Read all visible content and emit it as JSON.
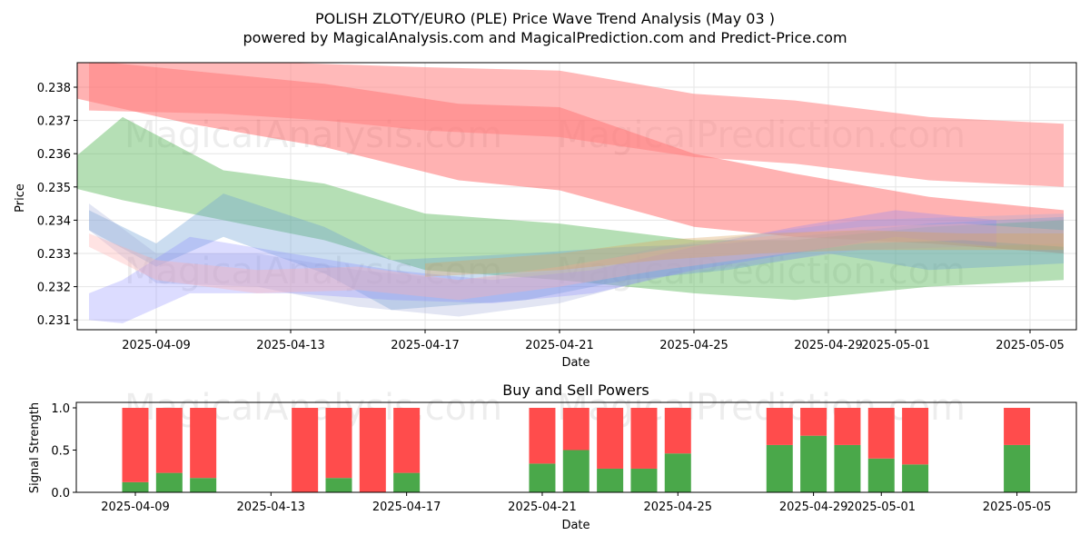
{
  "title": "POLISH ZLOTY/EURO (PLE) Price Wave Trend Analysis (May 03 )",
  "subtitle": "powered by MagicalAnalysis.com and MagicalPrediction.com and Predict-Price.com",
  "watermarks": [
    "MagicalAnalysis.com",
    "MagicalPrediction.com"
  ],
  "chart_data": [
    {
      "type": "area",
      "xlabel": "Date",
      "ylabel": "Price",
      "ylim": [
        0.2307,
        0.2387
      ],
      "xlim": [
        "2025-04-06",
        "2025-05-06"
      ],
      "grid": true,
      "yticks": [
        "0.231",
        "0.232",
        "0.233",
        "0.234",
        "0.235",
        "0.236",
        "0.237",
        "0.238"
      ],
      "xticks": [
        "2025-04-09",
        "2025-04-13",
        "2025-04-17",
        "2025-04-21",
        "2025-04-25",
        "2025-04-29",
        "2025-05-01",
        "2025-05-05"
      ],
      "bands": [
        {
          "color": "#ff5555",
          "opacity": 0.45,
          "x": [
            "2025-04-06",
            "2025-04-10",
            "2025-04-14",
            "2025-04-18",
            "2025-04-21",
            "2025-04-25",
            "2025-04-28",
            "2025-05-02",
            "2025-05-06"
          ],
          "upper": [
            0.2389,
            0.2385,
            0.2381,
            0.2375,
            0.2374,
            0.236,
            0.2354,
            0.2347,
            0.2343
          ],
          "lower": [
            0.2378,
            0.2369,
            0.2362,
            0.2352,
            0.2349,
            0.2338,
            0.2335,
            0.2333,
            0.233
          ]
        },
        {
          "color": "#ff8080",
          "opacity": 0.55,
          "x": [
            "2025-04-07",
            "2025-04-11",
            "2025-04-14",
            "2025-04-17",
            "2025-04-21",
            "2025-04-25",
            "2025-04-28",
            "2025-05-02",
            "2025-05-06"
          ],
          "upper": [
            0.2389,
            0.2388,
            0.2387,
            0.2386,
            0.2385,
            0.2378,
            0.2376,
            0.2371,
            0.2369
          ],
          "lower": [
            0.2373,
            0.2372,
            0.237,
            0.2367,
            0.2365,
            0.2359,
            0.2357,
            0.2352,
            0.235
          ]
        },
        {
          "color": "#5cb85c",
          "opacity": 0.45,
          "x": [
            "2025-04-06",
            "2025-04-08",
            "2025-04-11",
            "2025-04-14",
            "2025-04-17",
            "2025-04-21",
            "2025-04-25",
            "2025-04-28",
            "2025-05-02",
            "2025-05-06"
          ],
          "upper": [
            0.2354,
            0.2371,
            0.2355,
            0.2351,
            0.2342,
            0.2339,
            0.2334,
            0.2334,
            0.2338,
            0.234
          ],
          "lower": [
            0.2351,
            0.2346,
            0.234,
            0.2334,
            0.2325,
            0.2322,
            0.2318,
            0.2316,
            0.232,
            0.2322
          ]
        },
        {
          "color": "#6a9fd4",
          "opacity": 0.35,
          "x": [
            "2025-04-07",
            "2025-04-09",
            "2025-04-11",
            "2025-04-14",
            "2025-04-16",
            "2025-04-20",
            "2025-04-23",
            "2025-04-26",
            "2025-04-29",
            "2025-05-02",
            "2025-05-06"
          ],
          "upper": [
            0.2343,
            0.2333,
            0.2348,
            0.2338,
            0.2328,
            0.233,
            0.2332,
            0.2333,
            0.2336,
            0.2339,
            0.2341
          ],
          "lower": [
            0.2337,
            0.2326,
            0.2335,
            0.2324,
            0.2313,
            0.2316,
            0.2322,
            0.2325,
            0.233,
            0.2325,
            0.2327
          ]
        },
        {
          "color": "#a0a8d8",
          "opacity": 0.3,
          "x": [
            "2025-04-07",
            "2025-04-09",
            "2025-04-12",
            "2025-04-15",
            "2025-04-18",
            "2025-04-21",
            "2025-04-24",
            "2025-04-27",
            "2025-04-30",
            "2025-05-03",
            "2025-05-06"
          ],
          "upper": [
            0.2345,
            0.233,
            0.233,
            0.2325,
            0.2322,
            0.2325,
            0.2332,
            0.2336,
            0.234,
            0.2341,
            0.2342
          ],
          "lower": [
            0.2337,
            0.2321,
            0.232,
            0.2314,
            0.2311,
            0.2315,
            0.2323,
            0.2327,
            0.2331,
            0.2332,
            0.2333
          ]
        },
        {
          "color": "#8080ff",
          "opacity": 0.28,
          "x": [
            "2025-04-07",
            "2025-04-08",
            "2025-04-10",
            "2025-04-13",
            "2025-04-16",
            "2025-04-19",
            "2025-04-22",
            "2025-04-25",
            "2025-04-28",
            "2025-05-01",
            "2025-05-04"
          ],
          "upper": [
            0.2318,
            0.2322,
            0.2335,
            0.233,
            0.2325,
            0.2322,
            0.2325,
            0.2332,
            0.2338,
            0.2343,
            0.234
          ],
          "lower": [
            0.231,
            0.2309,
            0.2318,
            0.2318,
            0.2316,
            0.2315,
            0.2318,
            0.2325,
            0.233,
            0.2335,
            0.2332
          ]
        },
        {
          "color": "#ffb0b0",
          "opacity": 0.35,
          "x": [
            "2025-04-07",
            "2025-04-09",
            "2025-04-12",
            "2025-04-15",
            "2025-04-18",
            "2025-04-21",
            "2025-04-24",
            "2025-04-27",
            "2025-04-30",
            "2025-05-03",
            "2025-05-06"
          ],
          "upper": [
            0.2336,
            0.2328,
            0.2325,
            0.2326,
            0.2322,
            0.2326,
            0.2331,
            0.2335,
            0.2338,
            0.2339,
            0.2337
          ],
          "lower": [
            0.2332,
            0.2322,
            0.2318,
            0.2319,
            0.2316,
            0.232,
            0.2325,
            0.2329,
            0.2333,
            0.2334,
            0.2332
          ]
        },
        {
          "color": "#d9a35c",
          "opacity": 0.35,
          "x": [
            "2025-04-17",
            "2025-04-21",
            "2025-04-24",
            "2025-04-27",
            "2025-04-30",
            "2025-05-03",
            "2025-05-06"
          ],
          "upper": [
            0.2327,
            0.233,
            0.2334,
            0.2336,
            0.2337,
            0.2336,
            0.2336
          ],
          "lower": [
            0.2323,
            0.2325,
            0.2328,
            0.233,
            0.2331,
            0.2331,
            0.2331
          ]
        }
      ]
    },
    {
      "type": "bar",
      "title": "Buy and Sell Powers",
      "xlabel": "Date",
      "ylabel": "Signal Strength",
      "ylim": [
        0,
        1.05
      ],
      "yticks": [
        "0.0",
        "0.5",
        "1.0"
      ],
      "xticks": [
        "2025-04-09",
        "2025-04-13",
        "2025-04-17",
        "2025-04-21",
        "2025-04-25",
        "2025-04-29",
        "2025-05-01",
        "2025-05-05"
      ],
      "categories": [
        "2025-04-09",
        "2025-04-10",
        "2025-04-11",
        "2025-04-14",
        "2025-04-15",
        "2025-04-16",
        "2025-04-17",
        "2025-04-21",
        "2025-04-22",
        "2025-04-23",
        "2025-04-24",
        "2025-04-25",
        "2025-04-28",
        "2025-04-29",
        "2025-04-30",
        "2025-05-01",
        "2025-05-02",
        "2025-05-05"
      ],
      "series": [
        {
          "color": "#4aa84a",
          "values": [
            0.12,
            0.23,
            0.17,
            0.0,
            0.17,
            0.0,
            0.23,
            0.34,
            0.5,
            0.28,
            0.28,
            0.46,
            0.56,
            0.67,
            0.56,
            0.4,
            0.33,
            0.56
          ]
        },
        {
          "color": "#ff4c4c",
          "values": [
            0.88,
            0.77,
            0.83,
            1.0,
            0.83,
            1.0,
            0.77,
            0.66,
            0.5,
            0.72,
            0.72,
            0.54,
            0.44,
            0.33,
            0.44,
            0.6,
            0.67,
            0.44
          ]
        }
      ]
    }
  ]
}
